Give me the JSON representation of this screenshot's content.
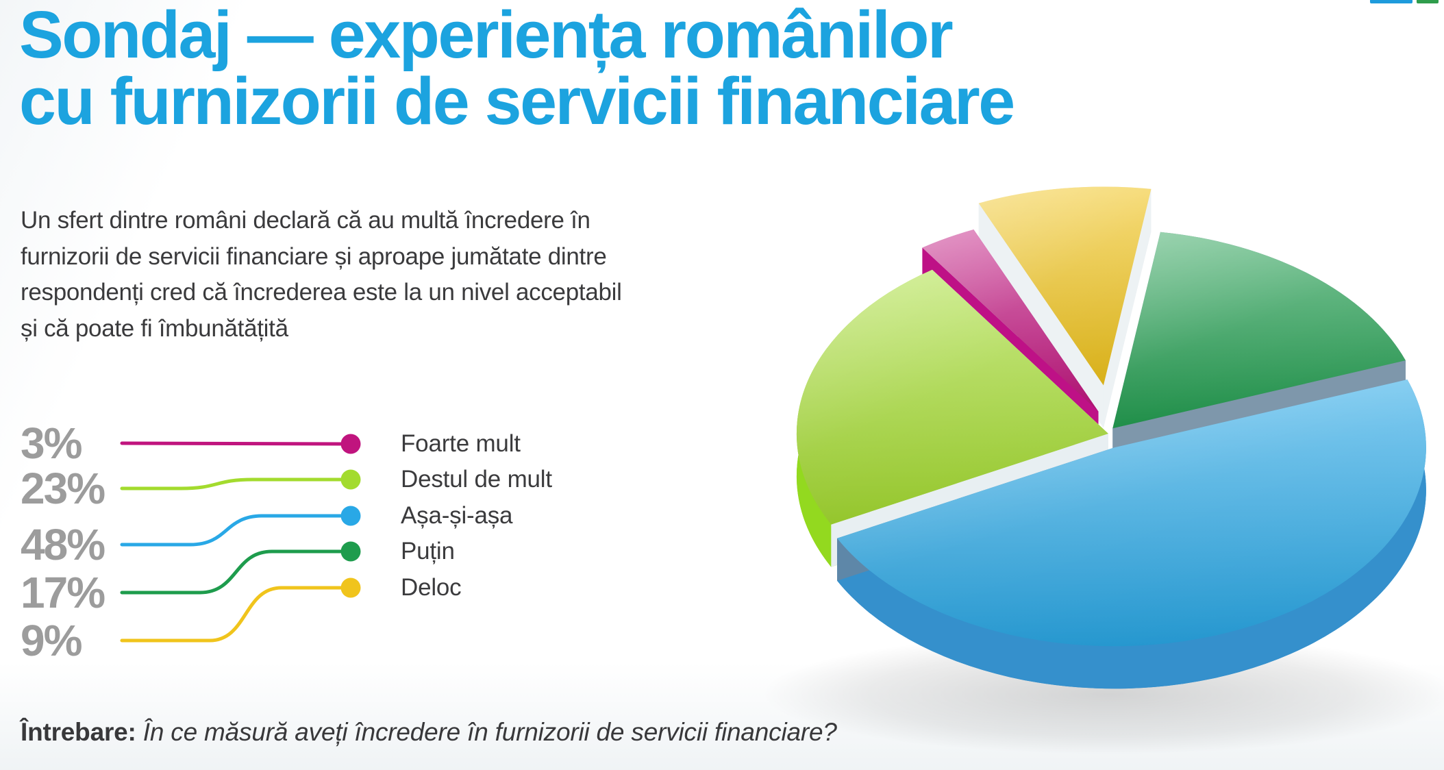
{
  "header": {
    "title": "Sondaj — experiența românilor cu furnizorii de servicii financiare",
    "title_line1": "Sondaj — experiența românilor",
    "title_line2": "cu furnizorii de servicii financiare",
    "title_color": "#1CA3DF"
  },
  "intro": {
    "text": "Un sfert dintre români declară că au multă încredere în furnizorii de servicii financiare și aproape jumătate dintre respondenți cred că încrederea este la un nivel acceptabil și că poate fi îmbunătățită"
  },
  "question": {
    "prefix": "Întrebare:",
    "text": "În ce măsură aveți încredere în furnizorii de servicii financiare?"
  },
  "chart_data": {
    "type": "pie",
    "style": "3d-exploded",
    "unit": "%",
    "legend_position": "left",
    "slices": [
      {
        "label": "Foarte mult",
        "value": 3,
        "display": "3%",
        "color": "#C0147E"
      },
      {
        "label": "Destul de mult",
        "value": 23,
        "display": "23%",
        "color": "#A3DB2E"
      },
      {
        "label": "Așa-și-așa",
        "value": 48,
        "display": "48%",
        "color": "#29A8E6"
      },
      {
        "label": "Puțin",
        "value": 17,
        "display": "17%",
        "color": "#1E9C4D"
      },
      {
        "label": "Deloc",
        "value": 9,
        "display": "9%",
        "color": "#F0C41C"
      }
    ]
  },
  "decor": {
    "logo_strip_colors": [
      "#1E9BDC",
      "#2F9D4C"
    ],
    "value_color": "#9C9C9C",
    "text_color": "#3A3A3C"
  }
}
